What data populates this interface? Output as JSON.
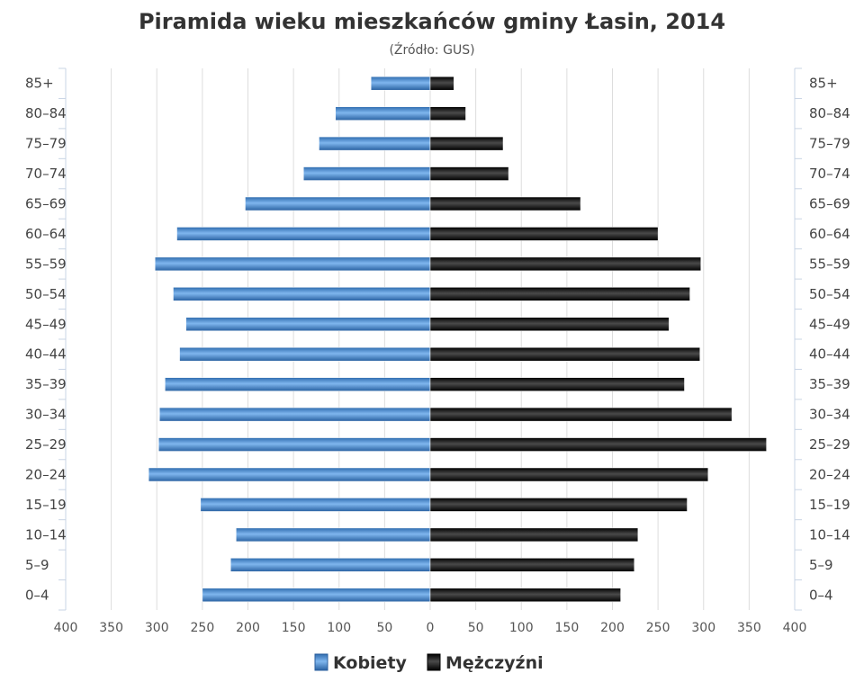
{
  "chart_data": {
    "type": "bar",
    "orientation": "horizontal",
    "subtype": "population-pyramid",
    "title": "Piramida wieku mieszkańców gminy Łasin, 2014",
    "subtitle": "(Źródło: GUS)",
    "categories": [
      "0–4",
      "5–9",
      "10–14",
      "15–19",
      "20–24",
      "25–29",
      "30–34",
      "35–39",
      "40–44",
      "45–49",
      "50–54",
      "55–59",
      "60–64",
      "65–69",
      "70–74",
      "75–79",
      "80–84",
      "85+"
    ],
    "series": [
      {
        "name": "Kobiety",
        "color": "#4a8ad0",
        "values": [
          250,
          219,
          213,
          252,
          309,
          298,
          297,
          291,
          275,
          268,
          282,
          302,
          278,
          203,
          139,
          122,
          104,
          65
        ]
      },
      {
        "name": "Mężczyźni",
        "color": "#1a1a1a",
        "values": [
          209,
          224,
          228,
          282,
          305,
          369,
          331,
          279,
          296,
          262,
          285,
          297,
          250,
          165,
          86,
          80,
          39,
          26
        ]
      }
    ],
    "xlim": [
      -400,
      400
    ],
    "xticks": [
      "400",
      "350",
      "300",
      "250",
      "200",
      "150",
      "100",
      "50",
      "0",
      "50",
      "100",
      "150",
      "200",
      "250",
      "300",
      "350",
      "400"
    ],
    "grid": true,
    "legend": "bottom-center"
  }
}
